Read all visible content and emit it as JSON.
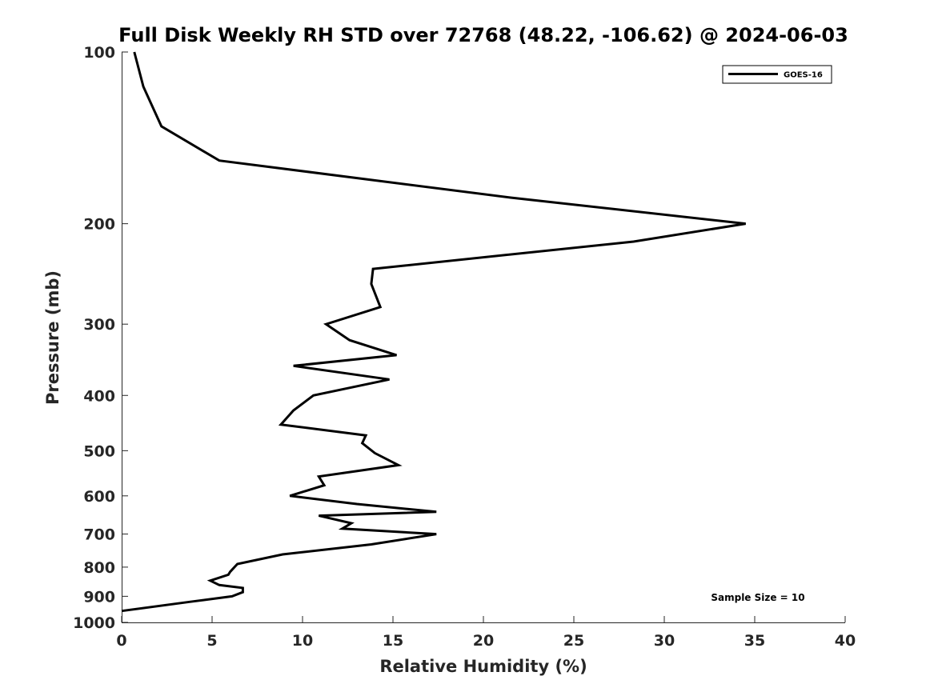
{
  "chart_data": {
    "type": "line",
    "title": "Full Disk Weekly RH STD over 72768 (48.22, -106.62) @ 2024-06-03",
    "xlabel": "Relative Humidity (%)",
    "ylabel": "Pressure (mb)",
    "xlim": [
      0,
      40
    ],
    "ylim": [
      1000,
      100
    ],
    "yscale": "log",
    "yreversed": true,
    "xticks": [
      0,
      5,
      10,
      15,
      20,
      25,
      30,
      35,
      40
    ],
    "yticks": [
      100,
      200,
      300,
      400,
      500,
      600,
      700,
      800,
      900,
      1000
    ],
    "grid": false,
    "legend_position": "top-right",
    "annotation": "Sample Size = 10",
    "series": [
      {
        "name": "GOES-16",
        "color": "#000000",
        "x": [
          0.7,
          1.2,
          2.2,
          5.4,
          21.5,
          34.5,
          28.3,
          13.9,
          13.8,
          14.3,
          11.3,
          12.6,
          15.2,
          9.5,
          14.8,
          10.6,
          9.5,
          8.8,
          13.5,
          13.3,
          14.0,
          15.3,
          10.9,
          11.2,
          9.3,
          13.0,
          17.4,
          10.9,
          12.7,
          12.2,
          17.4,
          13.8,
          8.9,
          6.4,
          6.0,
          5.9,
          4.9,
          5.4,
          6.7,
          6.7,
          6.1,
          3.8,
          0.0
        ],
        "y": [
          100,
          115,
          135,
          155,
          180,
          200,
          215,
          240,
          255,
          280,
          300,
          320,
          340,
          355,
          375,
          400,
          425,
          450,
          470,
          485,
          505,
          530,
          555,
          575,
          600,
          620,
          640,
          650,
          670,
          685,
          700,
          730,
          760,
          790,
          815,
          825,
          845,
          860,
          870,
          885,
          900,
          920,
          955
        ]
      }
    ]
  }
}
